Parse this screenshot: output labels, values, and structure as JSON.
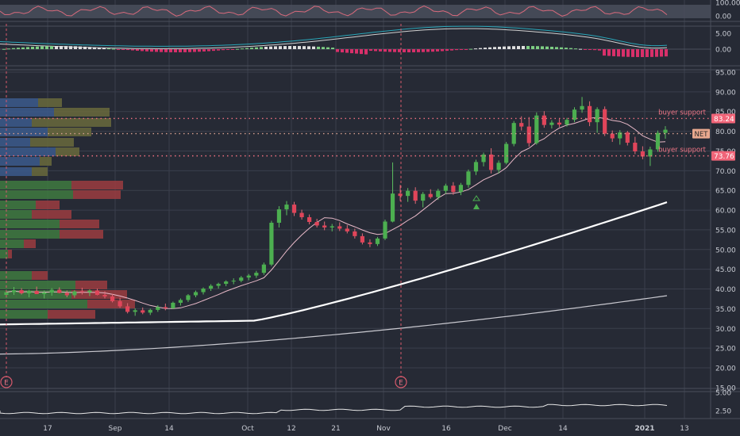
{
  "chart_data": {
    "type": "candlestick",
    "ticker": "NET",
    "last_price": "NET",
    "x_ticks": [
      "17",
      "Sep",
      "14",
      "Oct",
      "12",
      "21",
      "Nov",
      "16",
      "Dec",
      "14",
      "2021",
      "13"
    ],
    "price_axis": {
      "ticks": [
        "95.00",
        "90.00",
        "85.00",
        "80.00",
        "75.00",
        "70.00",
        "65.00",
        "60.00",
        "55.00",
        "50.00",
        "45.00",
        "40.00",
        "35.00",
        "30.00",
        "25.00",
        "20.00",
        "15.00"
      ],
      "range": [
        15,
        97
      ]
    },
    "price_labels": [
      {
        "text": "83.24",
        "value": 83.24,
        "kind": "support"
      },
      {
        "text": "NET",
        "value": 79.4,
        "kind": "ticker"
      },
      {
        "text": "73.76",
        "value": 73.76,
        "kind": "support"
      }
    ],
    "annotations": [
      {
        "text": "buyer support",
        "value": 83.24
      },
      {
        "text": "buyer support",
        "value": 73.76
      }
    ],
    "earnings_markers": [
      "E",
      "E"
    ],
    "rsi_panel": {
      "ticks": [
        "100.00",
        "0.00"
      ],
      "range": [
        0,
        100
      ]
    },
    "macd_panel": {
      "ticks": [
        "5.00",
        "0.00"
      ],
      "range": [
        -2.5,
        5.5
      ]
    },
    "bottom_panel": {
      "ticks": [
        "5.00",
        "2.50"
      ],
      "range": [
        1.5,
        5.2
      ]
    },
    "candles": [
      [
        38.5,
        39.8,
        37.8,
        39.2
      ],
      [
        39.2,
        40.5,
        38.5,
        39.7
      ],
      [
        39.7,
        40.2,
        38.6,
        38.9
      ],
      [
        38.9,
        39.8,
        37.9,
        39.5
      ],
      [
        39.5,
        40.6,
        38.8,
        38.7
      ],
      [
        38.7,
        39.6,
        37.6,
        39.1
      ],
      [
        39.1,
        40.2,
        38.3,
        39.8
      ],
      [
        39.8,
        40.4,
        38.9,
        39.0
      ],
      [
        39.0,
        39.6,
        37.9,
        38.4
      ],
      [
        38.4,
        39.7,
        37.8,
        39.4
      ],
      [
        39.4,
        40.3,
        38.6,
        39.2
      ],
      [
        39.2,
        39.9,
        38.2,
        39.6
      ],
      [
        39.6,
        40.1,
        38.4,
        38.5
      ],
      [
        38.5,
        39.4,
        37.6,
        38.1
      ],
      [
        38.1,
        38.7,
        36.6,
        36.9
      ],
      [
        36.9,
        37.8,
        35.2,
        35.6
      ],
      [
        35.6,
        36.4,
        33.8,
        34.2
      ],
      [
        34.2,
        35.1,
        33.2,
        34.6
      ],
      [
        34.6,
        35.3,
        33.6,
        34.0
      ],
      [
        34.0,
        35.0,
        33.4,
        34.7
      ],
      [
        34.7,
        35.9,
        34.2,
        35.4
      ],
      [
        35.4,
        36.3,
        34.6,
        35.1
      ],
      [
        35.1,
        36.8,
        34.9,
        36.5
      ],
      [
        36.5,
        37.6,
        35.8,
        37.2
      ],
      [
        37.2,
        38.7,
        36.7,
        38.4
      ],
      [
        38.4,
        39.6,
        37.9,
        39.2
      ],
      [
        39.2,
        40.4,
        38.6,
        40.1
      ],
      [
        40.1,
        41.2,
        39.5,
        40.8
      ],
      [
        40.8,
        41.6,
        40.1,
        41.3
      ],
      [
        41.3,
        42.2,
        40.7,
        41.9
      ],
      [
        41.9,
        42.7,
        41.2,
        42.1
      ],
      [
        42.1,
        43.3,
        41.7,
        42.9
      ],
      [
        42.9,
        43.8,
        42.2,
        43.4
      ],
      [
        43.4,
        44.6,
        42.8,
        44.1
      ],
      [
        44.1,
        46.7,
        43.6,
        46.2
      ],
      [
        46.2,
        57.3,
        45.8,
        56.8
      ],
      [
        56.8,
        61.0,
        55.6,
        60.2
      ],
      [
        60.2,
        62.3,
        58.7,
        61.4
      ],
      [
        61.4,
        62.1,
        58.5,
        59.3
      ],
      [
        59.3,
        60.1,
        57.6,
        58.2
      ],
      [
        58.2,
        58.9,
        56.4,
        57.0
      ],
      [
        57.0,
        57.8,
        55.6,
        56.1
      ],
      [
        56.1,
        57.1,
        54.9,
        55.6
      ],
      [
        55.6,
        56.5,
        54.6,
        55.9
      ],
      [
        55.9,
        56.9,
        54.7,
        55.3
      ],
      [
        55.3,
        56.2,
        54.1,
        54.6
      ],
      [
        54.6,
        55.3,
        52.8,
        53.4
      ],
      [
        53.4,
        54.1,
        51.3,
        51.8
      ],
      [
        51.8,
        52.6,
        50.6,
        51.4
      ],
      [
        51.4,
        53.2,
        50.9,
        52.8
      ],
      [
        52.8,
        57.6,
        52.4,
        57.1
      ],
      [
        57.1,
        72.1,
        56.9,
        64.2
      ],
      [
        64.2,
        66.4,
        62.3,
        63.6
      ],
      [
        63.6,
        65.6,
        62.1,
        64.9
      ],
      [
        64.9,
        65.8,
        61.6,
        62.4
      ],
      [
        62.4,
        64.6,
        60.7,
        64.1
      ],
      [
        64.1,
        65.3,
        62.9,
        63.3
      ],
      [
        63.3,
        65.4,
        62.6,
        64.9
      ],
      [
        64.9,
        66.7,
        64.1,
        66.2
      ],
      [
        66.2,
        67.1,
        63.9,
        64.6
      ],
      [
        64.6,
        66.9,
        63.8,
        66.4
      ],
      [
        66.4,
        70.3,
        65.7,
        69.8
      ],
      [
        69.8,
        72.8,
        68.9,
        72.2
      ],
      [
        72.2,
        74.6,
        71.1,
        74.1
      ],
      [
        74.1,
        75.7,
        69.3,
        70.2
      ],
      [
        70.2,
        72.6,
        69.3,
        72.0
      ],
      [
        72.0,
        77.3,
        71.6,
        76.8
      ],
      [
        76.8,
        82.6,
        76.2,
        82.1
      ],
      [
        82.1,
        83.8,
        80.2,
        81.2
      ],
      [
        81.2,
        83.6,
        76.1,
        77.0
      ],
      [
        77.0,
        84.8,
        76.6,
        84.0
      ],
      [
        84.0,
        85.1,
        80.9,
        81.6
      ],
      [
        81.6,
        82.8,
        80.7,
        82.2
      ],
      [
        82.2,
        83.1,
        81.1,
        81.7
      ],
      [
        81.7,
        83.4,
        81.2,
        82.9
      ],
      [
        82.9,
        86.1,
        82.3,
        85.5
      ],
      [
        85.5,
        88.7,
        84.7,
        86.4
      ],
      [
        86.4,
        87.6,
        81.3,
        82.3
      ],
      [
        82.3,
        86.1,
        79.6,
        85.6
      ],
      [
        85.6,
        86.3,
        78.8,
        79.4
      ],
      [
        79.4,
        80.2,
        77.3,
        78.2
      ],
      [
        78.2,
        80.3,
        76.6,
        79.7
      ],
      [
        79.7,
        80.1,
        76.4,
        77.1
      ],
      [
        77.1,
        78.6,
        74.2,
        74.9
      ],
      [
        74.9,
        76.2,
        72.9,
        73.6
      ],
      [
        73.6,
        76.1,
        71.2,
        75.4
      ],
      [
        75.4,
        80.2,
        74.8,
        79.6
      ],
      [
        79.6,
        81.3,
        78.1,
        80.4
      ]
    ]
  }
}
